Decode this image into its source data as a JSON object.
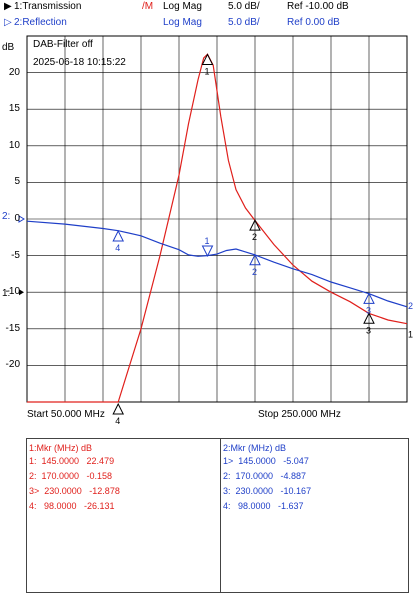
{
  "header": {
    "trace1": {
      "label": "1:Transmission",
      "marker": "/M",
      "format": "Log Mag",
      "scale": "5.0 dB/",
      "ref": "Ref -10.00 dB"
    },
    "trace2": {
      "label": "2:Reflection",
      "format": "Log Mag",
      "scale": "5.0 dB/",
      "ref": "Ref  0.00 dB"
    }
  },
  "plot": {
    "unit": "dB",
    "title_line1": "DAB-Filter off",
    "title_line2": "2025-06-18 10:15:22",
    "start_label": "Start 50.000 MHz",
    "stop_label": "Stop 250.000 MHz",
    "ref_label_t2": "2:",
    "ref_label_t1": "1:"
  },
  "chart_data": {
    "type": "line",
    "xlim": [
      50,
      250
    ],
    "ylim": [
      -25,
      25
    ],
    "yticks": [
      20,
      15,
      10,
      5,
      0,
      -5,
      -10,
      -15,
      -20
    ],
    "grid": true,
    "series": [
      {
        "name": "1:Transmission",
        "color": "#e0201c",
        "x": [
          50,
          98,
          110,
          120,
          130,
          135,
          140,
          143,
          145,
          148,
          152,
          156,
          160,
          165,
          170,
          180,
          190,
          200,
          210,
          220,
          230,
          240,
          250
        ],
        "y": [
          -26.1,
          -26.1,
          -15,
          -5,
          6,
          13,
          19,
          22,
          22.5,
          21,
          14,
          8,
          4,
          1.5,
          -0.2,
          -3.5,
          -6.3,
          -8.5,
          -10,
          -11.3,
          -12.9,
          -13.8,
          -14.3
        ]
      },
      {
        "name": "2:Reflection",
        "color": "#1f3fc8",
        "x": [
          50,
          70,
          90,
          98,
          110,
          120,
          130,
          135,
          140,
          145,
          150,
          155,
          160,
          165,
          170,
          180,
          190,
          200,
          210,
          220,
          230,
          240,
          250
        ],
        "y": [
          -0.3,
          -0.7,
          -1.3,
          -1.6,
          -2.3,
          -3.3,
          -4.2,
          -4.9,
          -5.1,
          -5.0,
          -4.8,
          -4.3,
          -4.1,
          -4.5,
          -4.9,
          -5.9,
          -6.8,
          -7.6,
          -8.6,
          -9.4,
          -10.2,
          -11.2,
          -12.0
        ]
      }
    ],
    "markers1": [
      {
        "id": "1",
        "x": 145,
        "y": 22.479
      },
      {
        "id": "2",
        "x": 170,
        "y": -0.158
      },
      {
        "id": "3",
        "x": 230,
        "y": -12.878
      },
      {
        "id": "4",
        "x": 98,
        "y": -26.131
      }
    ],
    "markers2": [
      {
        "id": "1",
        "x": 145,
        "y": -5.047
      },
      {
        "id": "2",
        "x": 170,
        "y": -4.887
      },
      {
        "id": "3",
        "x": 230,
        "y": -10.167
      },
      {
        "id": "4",
        "x": 98,
        "y": -1.637
      }
    ]
  },
  "table1": {
    "header": "1:Mkr (MHz)   dB",
    "rows": [
      "1:  145.0000   22.479",
      "2:  170.0000   -0.158",
      "3>  230.0000   -12.878",
      "4:   98.0000   -26.131"
    ]
  },
  "table2": {
    "header": "2:Mkr (MHz)   dB",
    "rows": [
      "1>  145.0000   -5.047",
      "2:  170.0000   -4.887",
      "3:  230.0000   -10.167",
      "4:   98.0000   -1.637"
    ]
  }
}
